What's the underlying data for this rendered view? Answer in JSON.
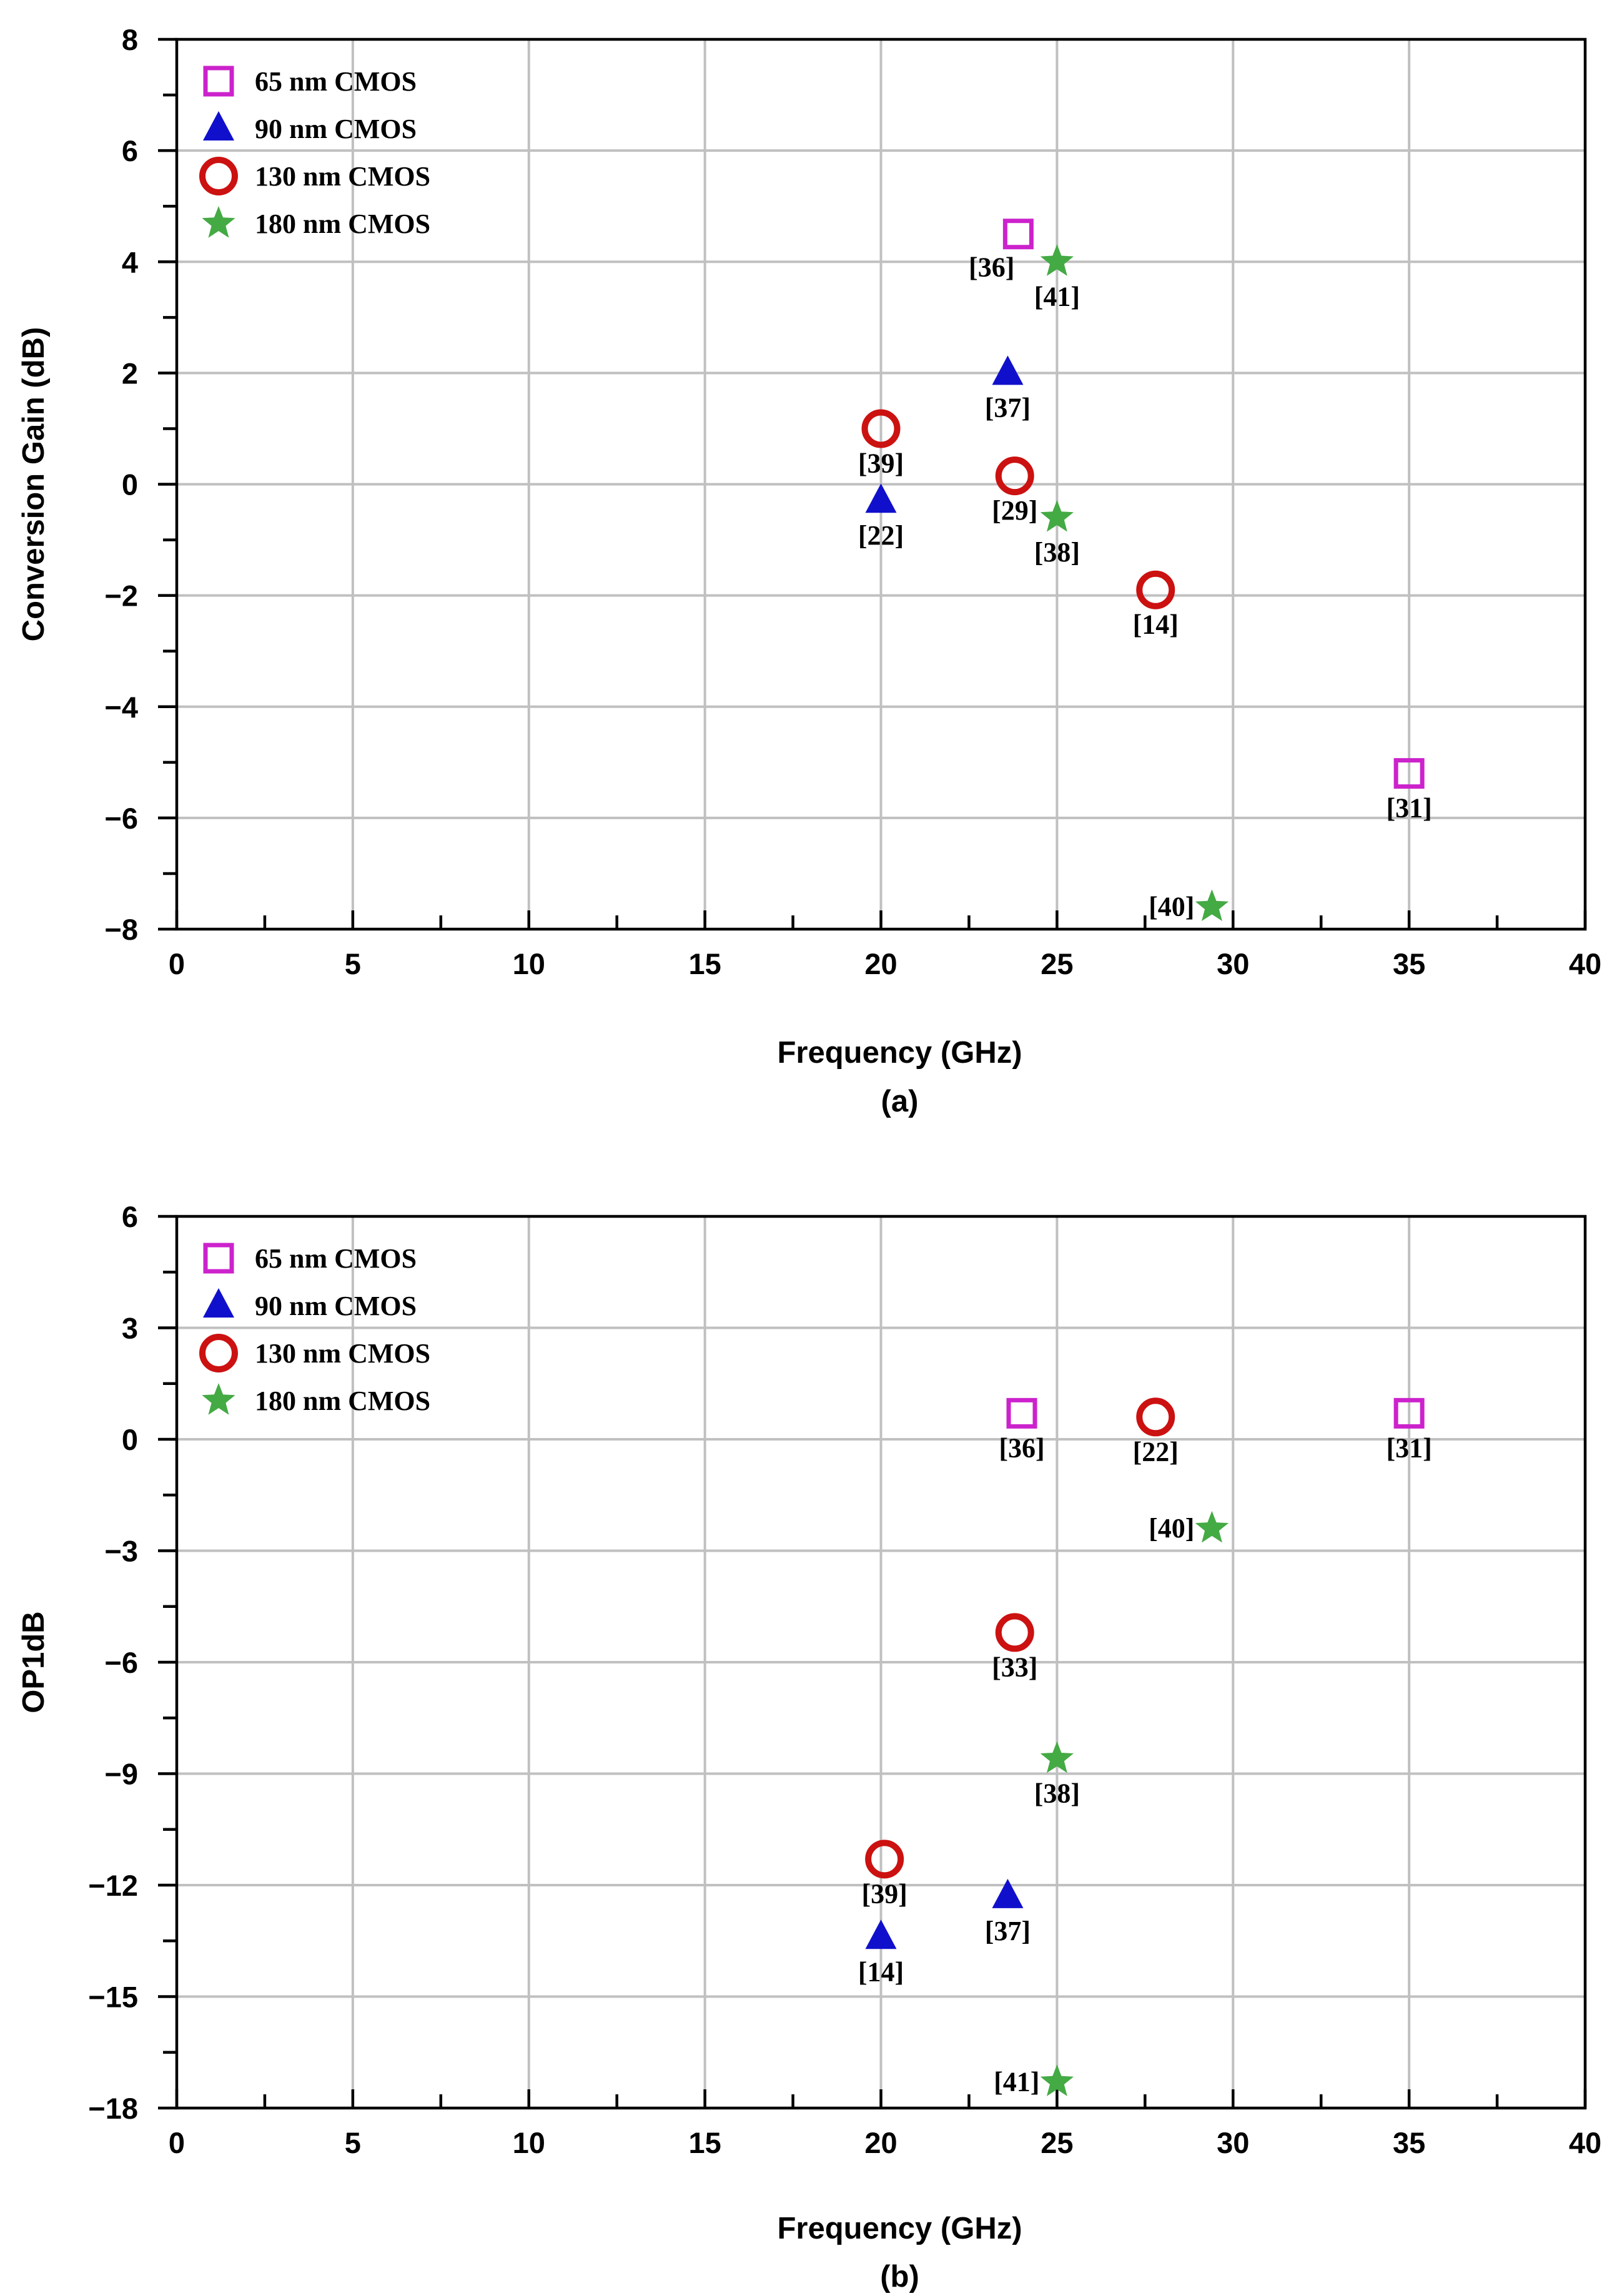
{
  "colors": {
    "n65": "#cc22cc",
    "n90": "#1010cc",
    "n130": "#cc1111",
    "n180": "#44aa44"
  },
  "chart_data": [
    {
      "type": "scatter",
      "panel_label": "(a)",
      "xlabel": "Frequency (GHz)",
      "ylabel": "Conversion Gain (dB)",
      "xlim": [
        0,
        40
      ],
      "ylim": [
        -8,
        8
      ],
      "xticks": [
        0,
        5,
        10,
        15,
        20,
        25,
        30,
        35,
        40
      ],
      "yticks": [
        8,
        6,
        4,
        2,
        0,
        -2,
        -4,
        -6,
        -8
      ],
      "ytick_labels": [
        "8",
        "6",
        "4",
        "2",
        "0",
        "−2",
        "−4",
        "−6",
        "−8"
      ],
      "grid": true,
      "legend_position": "top-left",
      "series": [
        {
          "name": "65 nm CMOS",
          "marker": "square",
          "color_key": "n65",
          "points": [
            {
              "x": 23.9,
              "y": 4.5,
              "label": "[36]",
              "label_pos": "left-below"
            },
            {
              "x": 35.0,
              "y": -5.2,
              "label": "[31]",
              "label_pos": "below"
            }
          ]
        },
        {
          "name": "90 nm CMOS",
          "marker": "triangle",
          "color_key": "n90",
          "points": [
            {
              "x": 23.6,
              "y": 2.0,
              "label": "[37]",
              "label_pos": "below"
            },
            {
              "x": 20.0,
              "y": -0.3,
              "label": "[22]",
              "label_pos": "below"
            }
          ]
        },
        {
          "name": "130 nm CMOS",
          "marker": "circle",
          "color_key": "n130",
          "points": [
            {
              "x": 20.0,
              "y": 1.0,
              "label": "[39]",
              "label_pos": "below"
            },
            {
              "x": 23.8,
              "y": 0.15,
              "label": "[29]",
              "label_pos": "below"
            },
            {
              "x": 27.8,
              "y": -1.9,
              "label": "[14]",
              "label_pos": "below"
            }
          ]
        },
        {
          "name": "180 nm CMOS",
          "marker": "star",
          "color_key": "n180",
          "points": [
            {
              "x": 25.0,
              "y": 4.0,
              "label": "[41]",
              "label_pos": "below"
            },
            {
              "x": 25.0,
              "y": -0.6,
              "label": "[38]",
              "label_pos": "below"
            },
            {
              "x": 29.4,
              "y": -7.6,
              "label": "[40]",
              "label_pos": "left"
            }
          ]
        }
      ]
    },
    {
      "type": "scatter",
      "panel_label": "(b)",
      "xlabel": "Frequency (GHz)",
      "ylabel": "OP1dB",
      "xlim": [
        0,
        40
      ],
      "ylim": [
        -18,
        6
      ],
      "xticks": [
        0,
        5,
        10,
        15,
        20,
        25,
        30,
        35,
        40
      ],
      "yticks": [
        6,
        3,
        0,
        -3,
        -6,
        -9,
        -12,
        -15,
        -18
      ],
      "ytick_labels": [
        "6",
        "3",
        "0",
        "−3",
        "−6",
        "−9",
        "−12",
        "−15",
        "−18"
      ],
      "grid": true,
      "legend_position": "top-left",
      "series": [
        {
          "name": "65 nm CMOS",
          "marker": "square",
          "color_key": "n65",
          "points": [
            {
              "x": 24.0,
              "y": 0.7,
              "label": "[36]",
              "label_pos": "below"
            },
            {
              "x": 35.0,
              "y": 0.7,
              "label": "[31]",
              "label_pos": "below"
            }
          ]
        },
        {
          "name": "90 nm CMOS",
          "marker": "triangle",
          "color_key": "n90",
          "points": [
            {
              "x": 23.6,
              "y": -12.3,
              "label": "[37]",
              "label_pos": "below"
            },
            {
              "x": 20.0,
              "y": -13.4,
              "label": "[14]",
              "label_pos": "below"
            }
          ]
        },
        {
          "name": "130 nm CMOS",
          "marker": "circle",
          "color_key": "n130",
          "points": [
            {
              "x": 27.8,
              "y": 0.6,
              "label": "[22]",
              "label_pos": "below"
            },
            {
              "x": 23.8,
              "y": -5.2,
              "label": "[33]",
              "label_pos": "below"
            },
            {
              "x": 20.1,
              "y": -11.3,
              "label": "[39]",
              "label_pos": "below"
            }
          ]
        },
        {
          "name": "180 nm CMOS",
          "marker": "star",
          "color_key": "n180",
          "points": [
            {
              "x": 29.4,
              "y": -2.4,
              "label": "[40]",
              "label_pos": "left"
            },
            {
              "x": 25.0,
              "y": -8.6,
              "label": "[38]",
              "label_pos": "below"
            },
            {
              "x": 25.0,
              "y": -17.3,
              "label": "[41]",
              "label_pos": "left"
            }
          ]
        }
      ]
    }
  ]
}
